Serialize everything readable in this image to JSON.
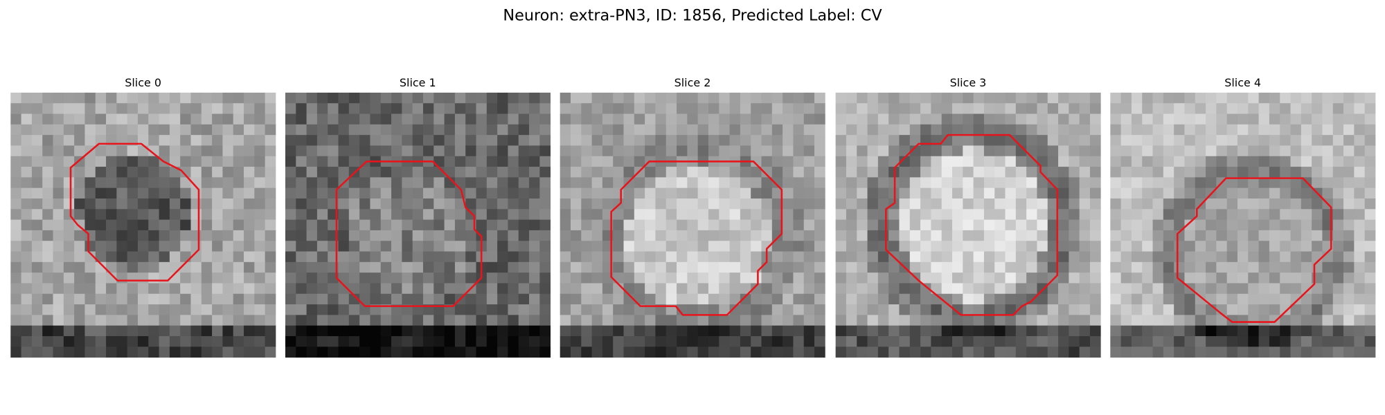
{
  "header": {
    "title": "Neuron: extra-PN3, ID: 1856, Predicted Label: CV"
  },
  "panels": [
    {
      "title": "Slice 0"
    },
    {
      "title": "Slice 1"
    },
    {
      "title": "Slice 2"
    },
    {
      "title": "Slice 3"
    },
    {
      "title": "Slice 4"
    }
  ]
}
